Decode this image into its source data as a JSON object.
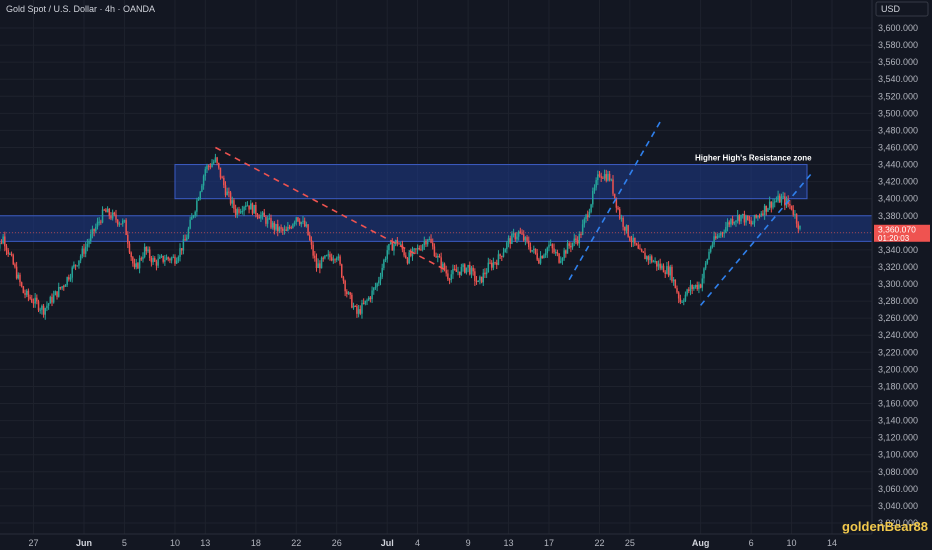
{
  "header": {
    "title": "Gold Spot / U.S. Dollar · 4h · OANDA"
  },
  "watermark": "goldenBear88",
  "colors": {
    "background": "#131722",
    "grid": "#1e222d",
    "axis_text": "#b2b5be",
    "up": "#26a69a",
    "down": "#ef5350",
    "zone_fill": "#1e3a8a",
    "zone_stroke": "#3b5cc4",
    "trend_down": "#ef5350",
    "trend_up": "#2f80ed",
    "price_label": "#ef5350",
    "watermark": "#f2c94c"
  },
  "chart_data": {
    "type": "candlestick",
    "title": "Gold Spot / U.S. Dollar · 4h · OANDA",
    "currency_label": "USD",
    "ylim": [
      3000,
      3620
    ],
    "y_ticks": [
      "3,600.000",
      "3,580.000",
      "3,560.000",
      "3,540.000",
      "3,520.000",
      "3,500.000",
      "3,480.000",
      "3,460.000",
      "3,440.000",
      "3,420.000",
      "3,400.000",
      "3,380.000",
      "3,360.000",
      "3,340.000",
      "3,320.000",
      "3,300.000",
      "3,280.000",
      "3,260.000",
      "3,240.000",
      "3,220.000",
      "3,200.000",
      "3,180.000",
      "3,160.000",
      "3,140.000",
      "3,120.000",
      "3,100.000",
      "3,080.000",
      "3,060.000",
      "3,040.000",
      "3,020.000"
    ],
    "x_ticks": [
      {
        "label": "27",
        "bold": false
      },
      {
        "label": "Jun",
        "bold": true
      },
      {
        "label": "5",
        "bold": false
      },
      {
        "label": "10",
        "bold": false
      },
      {
        "label": "13",
        "bold": false
      },
      {
        "label": "18",
        "bold": false
      },
      {
        "label": "22",
        "bold": false
      },
      {
        "label": "26",
        "bold": false
      },
      {
        "label": "Jul",
        "bold": true
      },
      {
        "label": "4",
        "bold": false
      },
      {
        "label": "9",
        "bold": false
      },
      {
        "label": "13",
        "bold": false
      },
      {
        "label": "17",
        "bold": false
      },
      {
        "label": "22",
        "bold": false
      },
      {
        "label": "25",
        "bold": false
      },
      {
        "label": "Aug",
        "bold": true
      },
      {
        "label": "6",
        "bold": false
      },
      {
        "label": "10",
        "bold": false
      },
      {
        "label": "14",
        "bold": false
      }
    ],
    "x_tick_dates": [
      "2025-05-27",
      "2025-06-01",
      "2025-06-05",
      "2025-06-10",
      "2025-06-13",
      "2025-06-18",
      "2025-06-22",
      "2025-06-26",
      "2025-07-01",
      "2025-07-04",
      "2025-07-09",
      "2025-07-13",
      "2025-07-17",
      "2025-07-22",
      "2025-07-25",
      "2025-08-01",
      "2025-08-06",
      "2025-08-10",
      "2025-08-14"
    ],
    "close_path": [
      {
        "date": "2025-05-23",
        "price": 3330
      },
      {
        "date": "2025-05-24",
        "price": 3355
      },
      {
        "date": "2025-05-26",
        "price": 3290
      },
      {
        "date": "2025-05-28",
        "price": 3270
      },
      {
        "date": "2025-05-30",
        "price": 3300
      },
      {
        "date": "2025-06-01",
        "price": 3340
      },
      {
        "date": "2025-06-03",
        "price": 3385
      },
      {
        "date": "2025-06-05",
        "price": 3370
      },
      {
        "date": "2025-06-06",
        "price": 3315
      },
      {
        "date": "2025-06-07",
        "price": 3340
      },
      {
        "date": "2025-06-08",
        "price": 3325
      },
      {
        "date": "2025-06-09",
        "price": 3330
      },
      {
        "date": "2025-06-10",
        "price": 3330
      },
      {
        "date": "2025-06-11",
        "price": 3350
      },
      {
        "date": "2025-06-12",
        "price": 3390
      },
      {
        "date": "2025-06-13",
        "price": 3435
      },
      {
        "date": "2025-06-14",
        "price": 3445
      },
      {
        "date": "2025-06-15",
        "price": 3410
      },
      {
        "date": "2025-06-16",
        "price": 3385
      },
      {
        "date": "2025-06-17",
        "price": 3395
      },
      {
        "date": "2025-06-18",
        "price": 3385
      },
      {
        "date": "2025-06-19",
        "price": 3375
      },
      {
        "date": "2025-06-20",
        "price": 3365
      },
      {
        "date": "2025-06-21",
        "price": 3360
      },
      {
        "date": "2025-06-22",
        "price": 3380
      },
      {
        "date": "2025-06-23",
        "price": 3365
      },
      {
        "date": "2025-06-24",
        "price": 3320
      },
      {
        "date": "2025-06-25",
        "price": 3330
      },
      {
        "date": "2025-06-26",
        "price": 3335
      },
      {
        "date": "2025-06-27",
        "price": 3290
      },
      {
        "date": "2025-06-28",
        "price": 3265
      },
      {
        "date": "2025-06-29",
        "price": 3280
      },
      {
        "date": "2025-06-30",
        "price": 3300
      },
      {
        "date": "2025-07-01",
        "price": 3340
      },
      {
        "date": "2025-07-02",
        "price": 3350
      },
      {
        "date": "2025-07-03",
        "price": 3330
      },
      {
        "date": "2025-07-04",
        "price": 3340
      },
      {
        "date": "2025-07-05",
        "price": 3355
      },
      {
        "date": "2025-07-06",
        "price": 3330
      },
      {
        "date": "2025-07-07",
        "price": 3310
      },
      {
        "date": "2025-07-08",
        "price": 3315
      },
      {
        "date": "2025-07-09",
        "price": 3320
      },
      {
        "date": "2025-07-10",
        "price": 3300
      },
      {
        "date": "2025-07-11",
        "price": 3320
      },
      {
        "date": "2025-07-12",
        "price": 3330
      },
      {
        "date": "2025-07-13",
        "price": 3350
      },
      {
        "date": "2025-07-14",
        "price": 3360
      },
      {
        "date": "2025-07-15",
        "price": 3345
      },
      {
        "date": "2025-07-16",
        "price": 3330
      },
      {
        "date": "2025-07-17",
        "price": 3345
      },
      {
        "date": "2025-07-18",
        "price": 3330
      },
      {
        "date": "2025-07-19",
        "price": 3345
      },
      {
        "date": "2025-07-20",
        "price": 3355
      },
      {
        "date": "2025-07-21",
        "price": 3390
      },
      {
        "date": "2025-07-22",
        "price": 3430
      },
      {
        "date": "2025-07-23",
        "price": 3425
      },
      {
        "date": "2025-07-24",
        "price": 3380
      },
      {
        "date": "2025-07-25",
        "price": 3355
      },
      {
        "date": "2025-07-26",
        "price": 3335
      },
      {
        "date": "2025-07-27",
        "price": 3330
      },
      {
        "date": "2025-07-28",
        "price": 3320
      },
      {
        "date": "2025-07-29",
        "price": 3315
      },
      {
        "date": "2025-07-30",
        "price": 3280
      },
      {
        "date": "2025-07-31",
        "price": 3295
      },
      {
        "date": "2025-08-01",
        "price": 3300
      },
      {
        "date": "2025-08-02",
        "price": 3345
      },
      {
        "date": "2025-08-03",
        "price": 3360
      },
      {
        "date": "2025-08-04",
        "price": 3375
      },
      {
        "date": "2025-08-05",
        "price": 3380
      },
      {
        "date": "2025-08-06",
        "price": 3370
      },
      {
        "date": "2025-08-07",
        "price": 3385
      },
      {
        "date": "2025-08-08",
        "price": 3395
      },
      {
        "date": "2025-08-09",
        "price": 3400
      },
      {
        "date": "2025-08-10",
        "price": 3390
      },
      {
        "date": "2025-08-11",
        "price": 3360
      }
    ],
    "zones": [
      {
        "name": "Higher High's Resistance zone",
        "from_date": "2025-06-10",
        "to_date": "2025-08-14",
        "low": 3400,
        "high": 3440,
        "label": "Higher High's Resistance zone"
      },
      {
        "name": "lower zone",
        "from_date": "2025-05-22",
        "to_date": "2025-08-14",
        "low": 3350,
        "high": 3380,
        "label": ""
      }
    ],
    "trendlines": [
      {
        "style": "down-dashed",
        "from": {
          "date": "2025-06-14",
          "price": 3460
        },
        "to": {
          "date": "2025-07-07",
          "price": 3315
        }
      },
      {
        "style": "up-dashed",
        "from": {
          "date": "2025-07-19",
          "price": 3305
        },
        "to": {
          "date": "2025-07-28",
          "price": 3490
        }
      },
      {
        "style": "up-dashed",
        "from": {
          "date": "2025-08-01",
          "price": 3275
        },
        "to": {
          "date": "2025-08-12",
          "price": 3430
        }
      }
    ],
    "last_price": {
      "price": 3360.07,
      "label": "3,360.070",
      "countdown": "01:20:03"
    },
    "grid": true,
    "legend": "none"
  }
}
